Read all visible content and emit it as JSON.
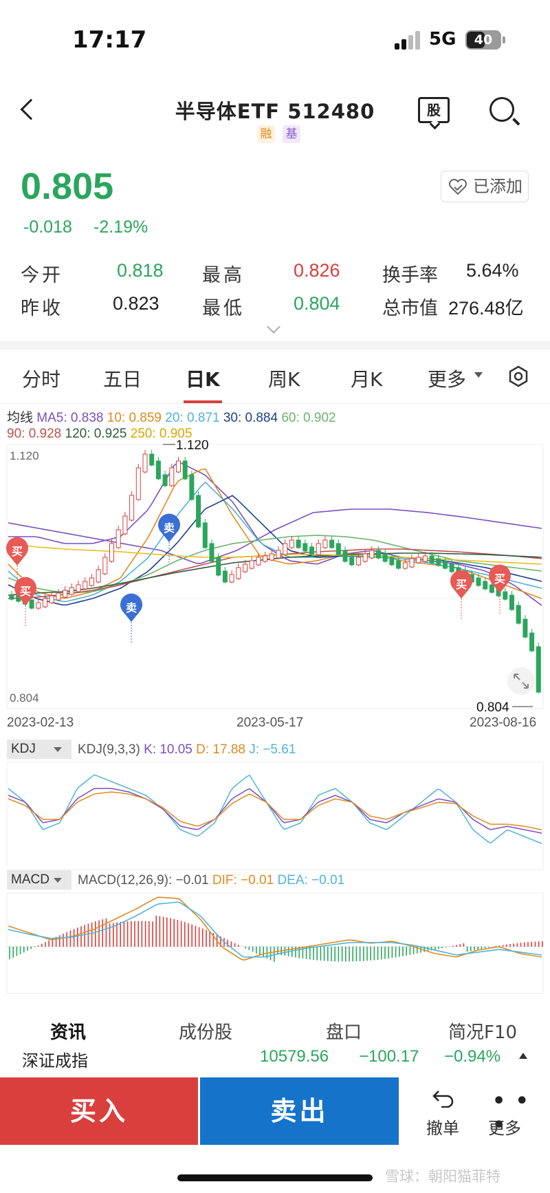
{
  "status_bar": {
    "time": "17:17",
    "network": "5G",
    "battery": "40"
  },
  "header": {
    "title": "半导体ETF  512480",
    "tag_rong": "融",
    "tag_ji": "基",
    "stock_icon_label": "股",
    "icons": [
      "back-icon",
      "stock-icon",
      "search-icon"
    ]
  },
  "quote": {
    "price": "0.805",
    "change": "-0.018",
    "change_pct": "-2.19%",
    "added_label": "已添加",
    "stats": [
      {
        "label": "今开",
        "value": "0.818",
        "color": "green"
      },
      {
        "label": "最高",
        "value": "0.826",
        "color": "red"
      },
      {
        "label": "换手率",
        "value": "5.64%",
        "color": "dark"
      },
      {
        "label": "昨收",
        "value": "0.823",
        "color": "dark"
      },
      {
        "label": "最低",
        "value": "0.804",
        "color": "green"
      },
      {
        "label": "总市值",
        "value": "276.48亿",
        "color": "dark"
      }
    ]
  },
  "tabs": {
    "items": [
      "分时",
      "五日",
      "日K",
      "周K",
      "月K",
      "更多"
    ],
    "active": "日K"
  },
  "ma_legend": {
    "prefix": "均线",
    "items": [
      {
        "label": "MA5: 0.838",
        "color": "#7a4fc0"
      },
      {
        "label": "10: 0.859",
        "color": "#e08a1e"
      },
      {
        "label": "20: 0.871",
        "color": "#4fb3d9"
      },
      {
        "label": "30: 0.884",
        "color": "#1e3f8a"
      },
      {
        "label": "60: 0.902",
        "color": "#6bb56b"
      },
      {
        "label": "90: 0.928",
        "color": "#c0504d"
      },
      {
        "label": "120: 0.925",
        "color": "#2f5b3f"
      },
      {
        "label": "250: 0.905",
        "color": "#e8c020"
      }
    ]
  },
  "price_chart": {
    "y_high_label": "1.120",
    "y_low_label": "0.804",
    "max_marker": "1.120",
    "min_marker": "0.804",
    "dates": [
      "2023-02-13",
      "2023-05-17",
      "2023-08-16"
    ],
    "buy_label": "买",
    "sell_label": "卖"
  },
  "kdj": {
    "selector": "KDJ",
    "params": "KDJ(9,3,3)",
    "k": "K: 10.05",
    "d": "D: 17.88",
    "j": "J: −5.61"
  },
  "macd": {
    "selector": "MACD",
    "params": "MACD(12,26,9): −0.01",
    "dif": "DIF: −0.01",
    "dea": "DEA: −0.01"
  },
  "bottom_tabs": [
    "资讯",
    "成份股",
    "盘口",
    "简况F10"
  ],
  "index_ticker": {
    "name": "深证成指",
    "value": "10579.56",
    "change": "−100.17",
    "change_pct": "−0.94%"
  },
  "actions": {
    "buy": "买入",
    "sell": "卖出",
    "undo": "撤单",
    "more": "更多"
  },
  "watermark": "雪球：朝阳猫菲特",
  "colors": {
    "up": "#d6403c",
    "down": "#2aa65d",
    "buy_button": "#d9403d",
    "sell_button": "#1573c9"
  }
}
